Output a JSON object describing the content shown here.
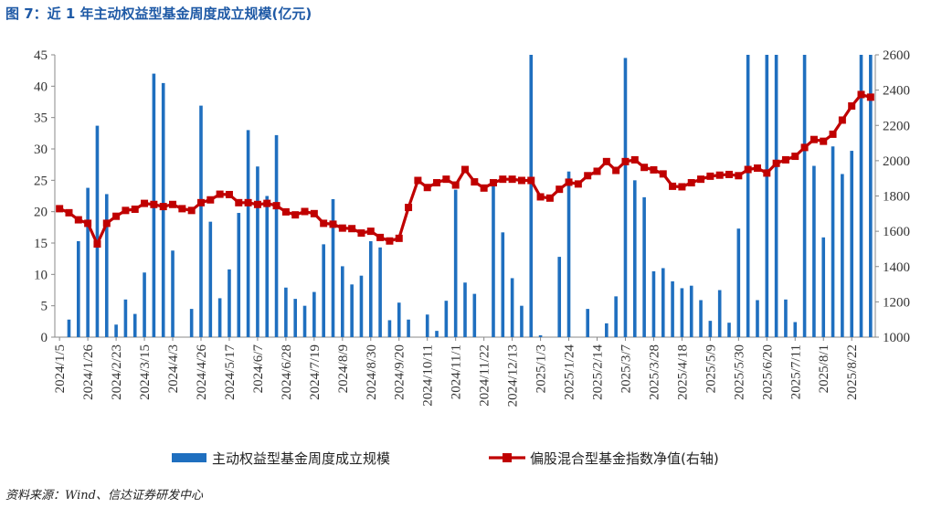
{
  "title": "图 7：近 1 年主动权益型基金周度成立规模(亿元)",
  "source": "资料来源：Wind、信达证券研发中心",
  "colors": {
    "bar": "#1f6fbf",
    "line": "#c00000",
    "title": "#1f5aa6"
  },
  "chart_data": {
    "type": "bar",
    "y_left_ticks": [
      "0",
      "5",
      "10",
      "15",
      "20",
      "25",
      "30",
      "35",
      "40",
      "45"
    ],
    "y_right_ticks": [
      "1000",
      "1200",
      "1400",
      "1600",
      "1800",
      "2000",
      "2200",
      "2400",
      "2600"
    ],
    "ylim_left": [
      0,
      45
    ],
    "ylim_right": [
      1000,
      2600
    ],
    "x_tick_labels": [
      "2024/1/5",
      "2024/1/26",
      "2024/2/23",
      "2024/3/15",
      "2024/4/3",
      "2024/4/26",
      "2024/5/17",
      "2024/6/7",
      "2024/6/28",
      "2024/7/19",
      "2024/8/9",
      "2024/8/30",
      "2024/9/20",
      "2024/10/11",
      "2024/11/1",
      "2024/11/22",
      "2024/12/13",
      "2025/1/3",
      "2025/1/24",
      "2025/2/14",
      "2025/3/7",
      "2025/3/28",
      "2025/4/18",
      "2025/5/9",
      "2025/5/30",
      "2025/6/20",
      "2025/7/11",
      "2025/8/1",
      "2025/8/22"
    ],
    "series": [
      {
        "name": "主动权益型基金周度成立规模",
        "kind": "bar",
        "axis": "left",
        "values": [
          0,
          2.8,
          15.3,
          23.8,
          33.7,
          22.8,
          2,
          6,
          3.7,
          10.3,
          42,
          40.5,
          13.8,
          0,
          4.5,
          36.9,
          18.4,
          6.2,
          10.8,
          19.8,
          33,
          27.2,
          22.5,
          32.2,
          7.9,
          6.1,
          5,
          7.2,
          14.8,
          22,
          11.3,
          8.4,
          9.8,
          15.3,
          14.3,
          2.7,
          5.5,
          2.8,
          0,
          3.6,
          1,
          5.8,
          23.5,
          8.7,
          6.9,
          0,
          24.7,
          16.7,
          9.4,
          5,
          45,
          0.3,
          0,
          12.8,
          26.4,
          0,
          4.5,
          0,
          2.2,
          6.5,
          44.5,
          25,
          22.3,
          10.5,
          11,
          8.9,
          7.8,
          8.2,
          5.9,
          2.6,
          7.5,
          2.3,
          17.3,
          45,
          5.9,
          45,
          45,
          6,
          2.4,
          45,
          27.3,
          15.9,
          30.4,
          26,
          29.7,
          45,
          45
        ]
      },
      {
        "name": "偏股混合型基金指数净值(右轴)",
        "kind": "line",
        "axis": "right",
        "values": [
          1728,
          1705,
          1665,
          1645,
          1528,
          1645,
          1685,
          1718,
          1725,
          1758,
          1752,
          1740,
          1752,
          1728,
          1718,
          1762,
          1778,
          1810,
          1808,
          1762,
          1762,
          1752,
          1758,
          1745,
          1710,
          1693,
          1712,
          1700,
          1645,
          1640,
          1618,
          1615,
          1590,
          1600,
          1565,
          1545,
          1560,
          1735,
          1888,
          1848,
          1875,
          1895,
          1862,
          1950,
          1880,
          1845,
          1875,
          1895,
          1895,
          1888,
          1888,
          1795,
          1788,
          1838,
          1878,
          1868,
          1915,
          1940,
          1995,
          1945,
          1995,
          2005,
          1962,
          1948,
          1925,
          1855,
          1852,
          1875,
          1895,
          1912,
          1918,
          1922,
          1915,
          1950,
          1958,
          1930,
          1985,
          2005,
          2025,
          2075,
          2120,
          2110,
          2150,
          2230,
          2310,
          2375,
          2360
        ]
      }
    ]
  }
}
